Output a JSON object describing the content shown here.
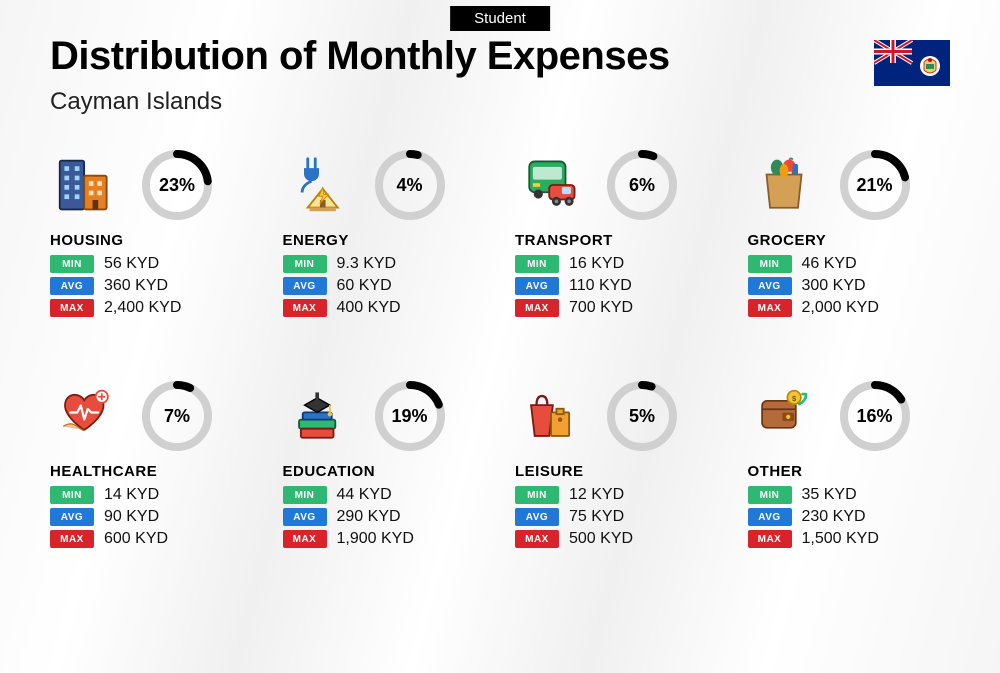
{
  "badge": "Student",
  "title": "Distribution of Monthly Expenses",
  "subtitle": "Cayman Islands",
  "currency": "KYD",
  "labels": {
    "min": "MIN",
    "avg": "AVG",
    "max": "MAX"
  },
  "colors": {
    "min": "#2eb872",
    "avg": "#2079d8",
    "max": "#d8232a",
    "donut_ring": "#d0d0d0",
    "donut_fill": "#000000"
  },
  "donut": {
    "size": 70,
    "stroke": 8
  },
  "categories": [
    {
      "name": "HOUSING",
      "icon": "housing",
      "percent": 23,
      "min": "56 KYD",
      "avg": "360 KYD",
      "max": "2,400 KYD"
    },
    {
      "name": "ENERGY",
      "icon": "energy",
      "percent": 4,
      "min": "9.3 KYD",
      "avg": "60 KYD",
      "max": "400 KYD"
    },
    {
      "name": "TRANSPORT",
      "icon": "transport",
      "percent": 6,
      "min": "16 KYD",
      "avg": "110 KYD",
      "max": "700 KYD"
    },
    {
      "name": "GROCERY",
      "icon": "grocery",
      "percent": 21,
      "min": "46 KYD",
      "avg": "300 KYD",
      "max": "2,000 KYD"
    },
    {
      "name": "HEALTHCARE",
      "icon": "healthcare",
      "percent": 7,
      "min": "14 KYD",
      "avg": "90 KYD",
      "max": "600 KYD"
    },
    {
      "name": "EDUCATION",
      "icon": "education",
      "percent": 19,
      "min": "44 KYD",
      "avg": "290 KYD",
      "max": "1,900 KYD"
    },
    {
      "name": "LEISURE",
      "icon": "leisure",
      "percent": 5,
      "min": "12 KYD",
      "avg": "75 KYD",
      "max": "500 KYD"
    },
    {
      "name": "OTHER",
      "icon": "other",
      "percent": 16,
      "min": "35 KYD",
      "avg": "230 KYD",
      "max": "1,500 KYD"
    }
  ]
}
